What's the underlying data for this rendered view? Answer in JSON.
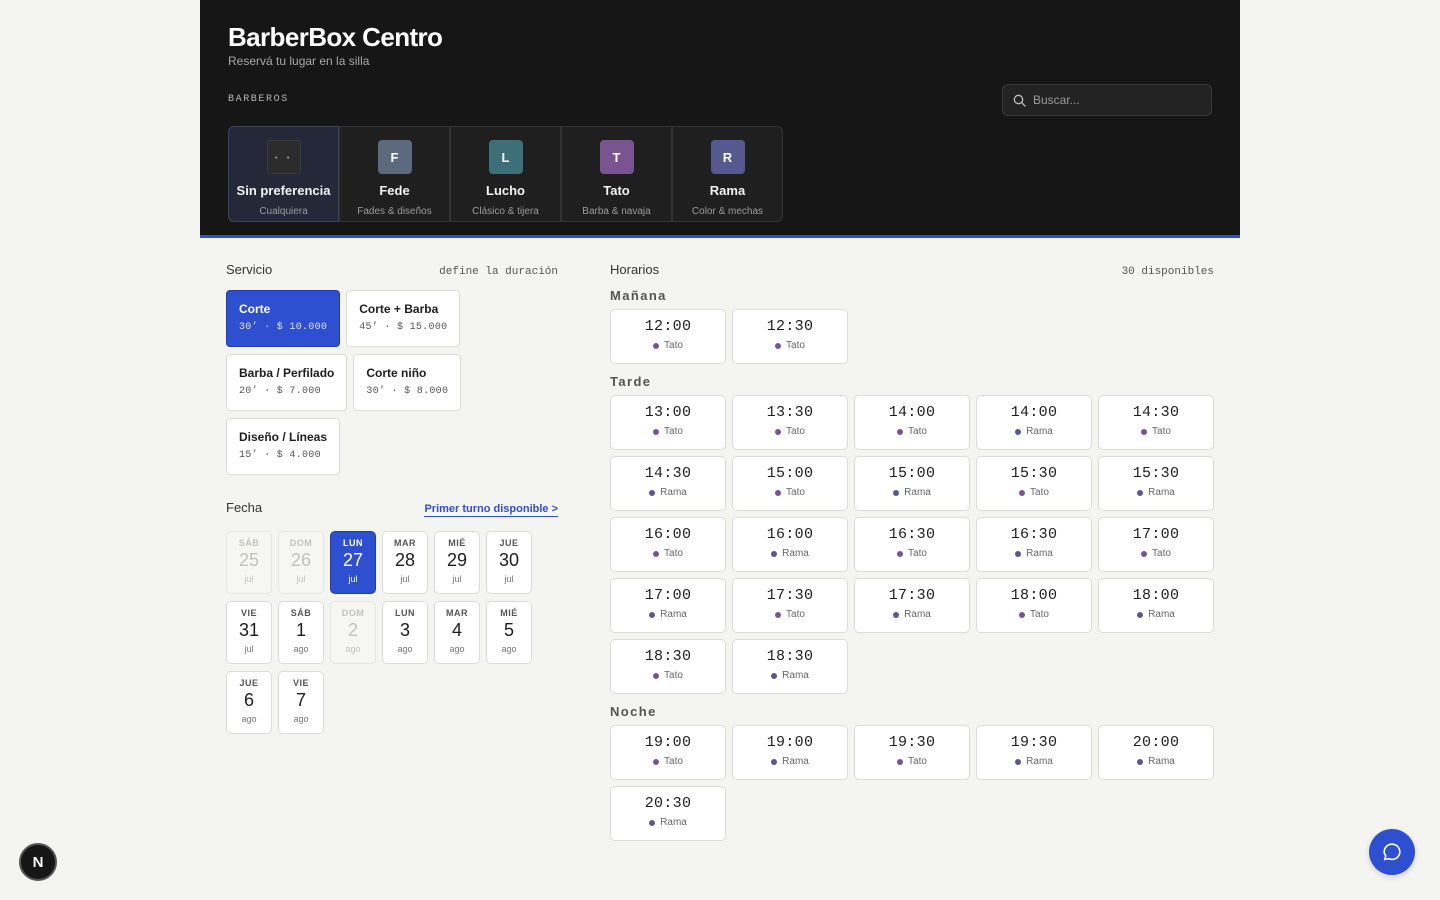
{
  "header": {
    "brand": "BarberBox Centro",
    "tagline": "Reservá tu lugar en la silla",
    "barbers_label": "BARBEROS",
    "search_placeholder": "Buscar..."
  },
  "barbers": [
    {
      "initial": "· ·",
      "name": "Sin preferencia",
      "spec": "Cualquiera",
      "color": "#2c2c2c",
      "active": true
    },
    {
      "initial": "F",
      "name": "Fede",
      "spec": "Fades & diseños",
      "color": "#5b6a7d",
      "active": false
    },
    {
      "initial": "L",
      "name": "Lucho",
      "spec": "Clásico & tijera",
      "color": "#3c6f77",
      "active": false
    },
    {
      "initial": "T",
      "name": "Tato",
      "spec": "Barba & navaja",
      "color": "#7a5491",
      "active": false
    },
    {
      "initial": "R",
      "name": "Rama",
      "spec": "Color & mechas",
      "color": "#565890",
      "active": false
    }
  ],
  "service": {
    "title": "Servicio",
    "hint": "define la duración",
    "items": [
      {
        "name": "Corte",
        "meta": "30’ · $ 10.000",
        "active": true
      },
      {
        "name": "Corte + Barba",
        "meta": "45’ · $ 15.000",
        "active": false
      },
      {
        "name": "Barba / Perfilado",
        "meta": "20’ · $ 7.000",
        "active": false
      },
      {
        "name": "Corte niño",
        "meta": "30’ · $ 8.000",
        "active": false
      },
      {
        "name": "Diseño / Líneas",
        "meta": "15’ · $ 4.000",
        "active": false
      }
    ]
  },
  "date": {
    "title": "Fecha",
    "first_available": "Primer turno disponible >",
    "days": [
      {
        "dow": "SÁB",
        "num": "25",
        "mon": "jul",
        "state": "disabled"
      },
      {
        "dow": "DOM",
        "num": "26",
        "mon": "jul",
        "state": "disabled"
      },
      {
        "dow": "LUN",
        "num": "27",
        "mon": "jul",
        "state": "active"
      },
      {
        "dow": "MAR",
        "num": "28",
        "mon": "jul",
        "state": "normal"
      },
      {
        "dow": "MIÉ",
        "num": "29",
        "mon": "jul",
        "state": "normal"
      },
      {
        "dow": "JUE",
        "num": "30",
        "mon": "jul",
        "state": "normal"
      },
      {
        "dow": "VIE",
        "num": "31",
        "mon": "jul",
        "state": "normal"
      },
      {
        "dow": "SÁB",
        "num": "1",
        "mon": "ago",
        "state": "normal"
      },
      {
        "dow": "DOM",
        "num": "2",
        "mon": "ago",
        "state": "disabled"
      },
      {
        "dow": "LUN",
        "num": "3",
        "mon": "ago",
        "state": "normal"
      },
      {
        "dow": "MAR",
        "num": "4",
        "mon": "ago",
        "state": "normal"
      },
      {
        "dow": "MIÉ",
        "num": "5",
        "mon": "ago",
        "state": "normal"
      },
      {
        "dow": "JUE",
        "num": "6",
        "mon": "ago",
        "state": "normal"
      },
      {
        "dow": "VIE",
        "num": "7",
        "mon": "ago",
        "state": "normal"
      }
    ]
  },
  "slots": {
    "title": "Horarios",
    "count": "30 disponibles",
    "colors": {
      "Tato": "#7a5491",
      "Rama": "#565890"
    },
    "periods": [
      {
        "label": "Mañana",
        "items": [
          {
            "time": "12:00",
            "barber": "Tato"
          },
          {
            "time": "12:30",
            "barber": "Tato"
          }
        ]
      },
      {
        "label": "Tarde",
        "items": [
          {
            "time": "13:00",
            "barber": "Tato"
          },
          {
            "time": "13:30",
            "barber": "Tato"
          },
          {
            "time": "14:00",
            "barber": "Tato"
          },
          {
            "time": "14:00",
            "barber": "Rama"
          },
          {
            "time": "14:30",
            "barber": "Tato"
          },
          {
            "time": "14:30",
            "barber": "Rama"
          },
          {
            "time": "15:00",
            "barber": "Tato"
          },
          {
            "time": "15:00",
            "barber": "Rama"
          },
          {
            "time": "15:30",
            "barber": "Tato"
          },
          {
            "time": "15:30",
            "barber": "Rama"
          },
          {
            "time": "16:00",
            "barber": "Tato"
          },
          {
            "time": "16:00",
            "barber": "Rama"
          },
          {
            "time": "16:30",
            "barber": "Tato"
          },
          {
            "time": "16:30",
            "barber": "Rama"
          },
          {
            "time": "17:00",
            "barber": "Tato"
          },
          {
            "time": "17:00",
            "barber": "Rama"
          },
          {
            "time": "17:30",
            "barber": "Tato"
          },
          {
            "time": "17:30",
            "barber": "Rama"
          },
          {
            "time": "18:00",
            "barber": "Tato"
          },
          {
            "time": "18:00",
            "barber": "Rama"
          },
          {
            "time": "18:30",
            "barber": "Tato"
          },
          {
            "time": "18:30",
            "barber": "Rama"
          }
        ]
      },
      {
        "label": "Noche",
        "items": [
          {
            "time": "19:00",
            "barber": "Tato"
          },
          {
            "time": "19:00",
            "barber": "Rama"
          },
          {
            "time": "19:30",
            "barber": "Tato"
          },
          {
            "time": "19:30",
            "barber": "Rama"
          },
          {
            "time": "20:00",
            "barber": "Rama"
          },
          {
            "time": "20:30",
            "barber": "Rama"
          }
        ]
      }
    ]
  },
  "floating": {
    "next_badge": "N"
  }
}
